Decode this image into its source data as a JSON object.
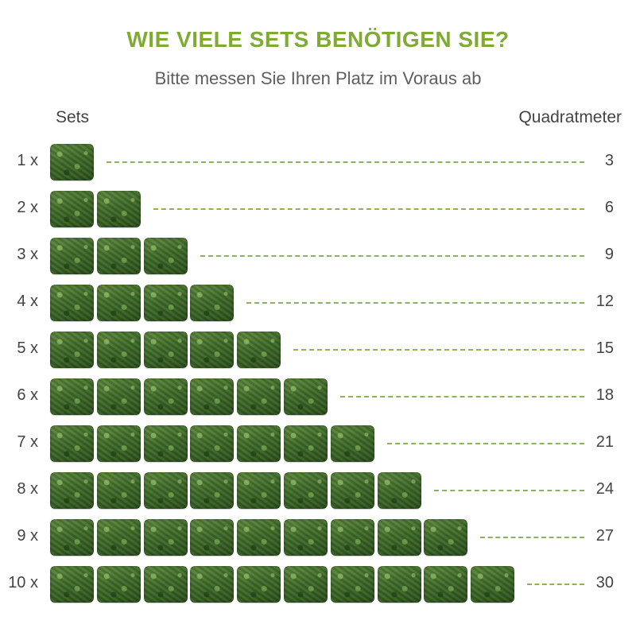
{
  "title": "WIE VIELE SETS BENÖTIGEN SIE?",
  "subtitle": "Bitte messen Sie Ihren Platz im Voraus ab",
  "columns": {
    "left": "Sets",
    "right": "Quadratmeter"
  },
  "rows": [
    {
      "label": "1 x",
      "sets": 1,
      "area": "3"
    },
    {
      "label": "2 x",
      "sets": 2,
      "area": "6"
    },
    {
      "label": "3 x",
      "sets": 3,
      "area": "9"
    },
    {
      "label": "4 x",
      "sets": 4,
      "area": "12"
    },
    {
      "label": "5 x",
      "sets": 5,
      "area": "15"
    },
    {
      "label": "6 x",
      "sets": 6,
      "area": "18"
    },
    {
      "label": "7 x",
      "sets": 7,
      "area": "21"
    },
    {
      "label": "8 x",
      "sets": 8,
      "area": "24"
    },
    {
      "label": "9 x",
      "sets": 9,
      "area": "27"
    },
    {
      "label": "10 x",
      "sets": 10,
      "area": "30"
    }
  ],
  "colors": {
    "title": "#7fab35",
    "leader": "#8ab35a",
    "text": "#444444"
  },
  "icons": {
    "panel": "hedge-panel-icon"
  }
}
